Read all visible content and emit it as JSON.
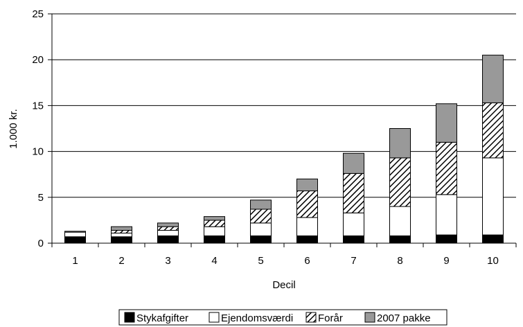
{
  "chart_data": {
    "type": "bar",
    "stacked": true,
    "xlabel": "Decil",
    "ylabel": "1.000 kr.",
    "ylim": [
      0,
      25
    ],
    "yticks": [
      0,
      5,
      10,
      15,
      20,
      25
    ],
    "grid": true,
    "legend_position": "bottom",
    "categories": [
      "1",
      "2",
      "3",
      "4",
      "5",
      "6",
      "7",
      "8",
      "9",
      "10"
    ],
    "series": [
      {
        "name": "Stykafgifter",
        "pattern": "solid-black",
        "values": [
          0.7,
          0.7,
          0.8,
          0.8,
          0.8,
          0.8,
          0.8,
          0.8,
          0.9,
          0.9
        ]
      },
      {
        "name": "Ejendomsværdi",
        "pattern": "white",
        "values": [
          0.5,
          0.4,
          0.6,
          1.0,
          1.4,
          2.0,
          2.5,
          3.2,
          4.4,
          8.4
        ]
      },
      {
        "name": "Forår",
        "pattern": "hatched",
        "values": [
          0.0,
          0.3,
          0.4,
          0.7,
          1.5,
          2.9,
          4.3,
          5.3,
          5.7,
          6.0
        ]
      },
      {
        "name": "2007 pakke",
        "pattern": "gray",
        "values": [
          0.1,
          0.4,
          0.4,
          0.4,
          1.0,
          1.3,
          2.2,
          3.2,
          4.2,
          5.2
        ]
      }
    ]
  }
}
